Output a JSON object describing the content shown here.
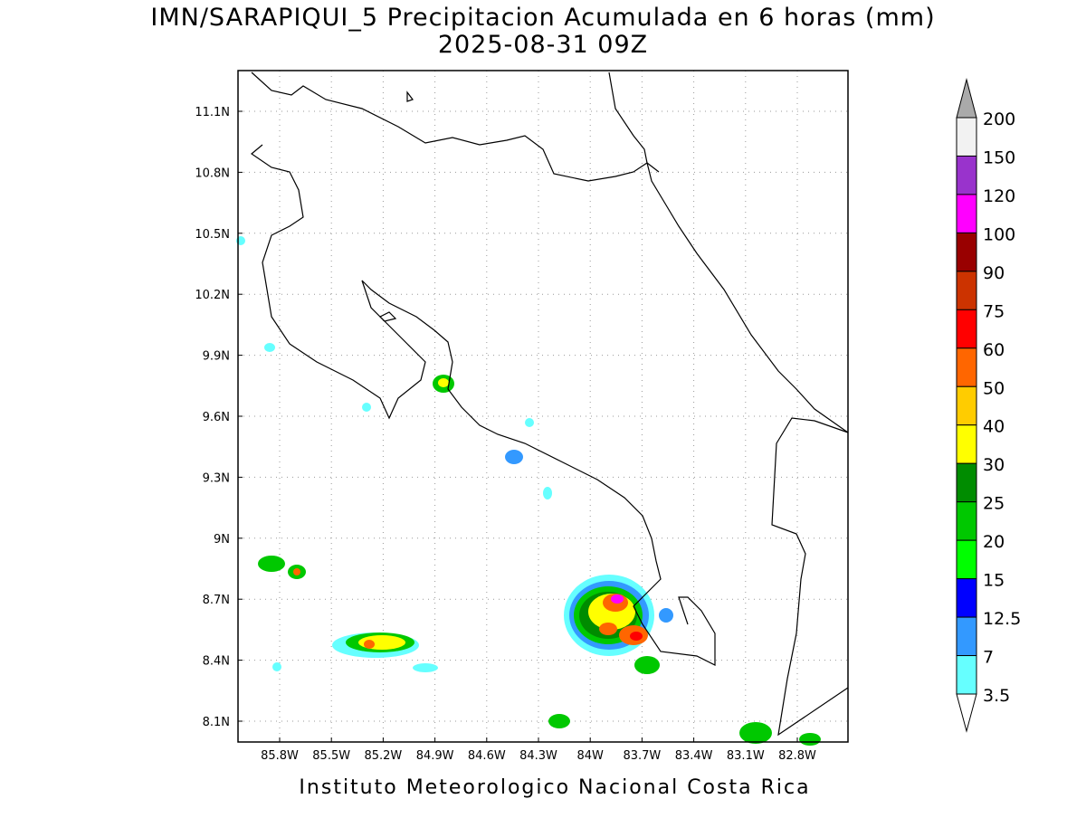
{
  "header": {
    "title": "IMN/SARAPIQUI_5 Precipitacion Acumulada en 6 horas (mm)",
    "subtitle": "2025-08-31 09Z"
  },
  "map": {
    "lat_labels": [
      "11.1N",
      "10.8N",
      "10.5N",
      "10.2N",
      "9.9N",
      "9.6N",
      "9.3N",
      "9N",
      "8.7N",
      "8.4N",
      "8.1N"
    ],
    "lon_labels": [
      "85.8W",
      "85.5W",
      "85.2W",
      "84.9W",
      "84.6W",
      "84.3W",
      "84W",
      "83.7W",
      "83.4W",
      "83.1W",
      "82.8W"
    ]
  },
  "colorbar": {
    "labels": [
      "200",
      "150",
      "120",
      "100",
      "90",
      "75",
      "60",
      "50",
      "40",
      "30",
      "25",
      "20",
      "15",
      "12.5",
      "7",
      "3.5"
    ],
    "colors": [
      "#f2f2f2",
      "#9933cc",
      "#ff00ff",
      "#990000",
      "#cc3300",
      "#ff0000",
      "#ff6600",
      "#ffcc00",
      "#ffff00",
      "#008c00",
      "#00c800",
      "#00ff00",
      "#0000ff",
      "#3399ff",
      "#66ffff"
    ]
  },
  "footer": {
    "text": "Instituto Meteorologico Nacional Costa Rica"
  }
}
